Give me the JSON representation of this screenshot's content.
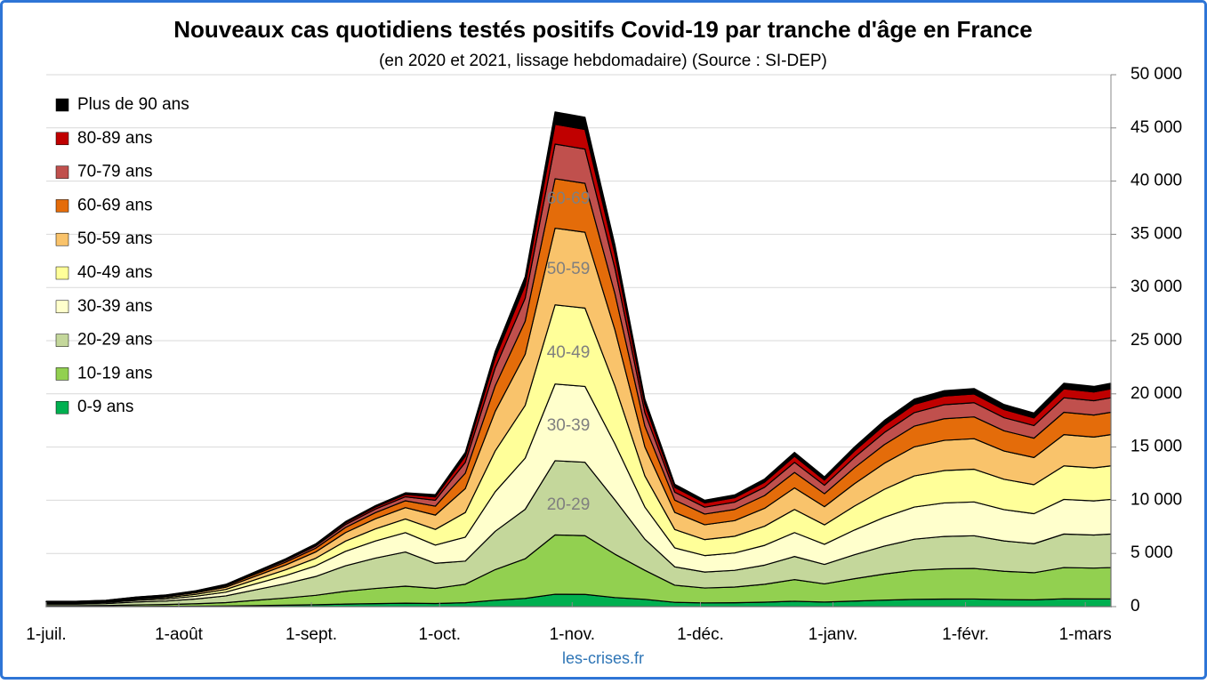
{
  "chart_data": {
    "type": "stacked-area",
    "title": "Nouveaux cas quotidiens testés positifs Covid-19 par tranche d'âge en France",
    "subtitle": "(en 2020 et 2021, lissage hebdomadaire) (Source : SI-DEP)",
    "source": "les-crises.fr",
    "annotations": [
      "60-69",
      "50-59",
      "40-49",
      "30-39",
      "20-29"
    ],
    "x": [
      0,
      7,
      14,
      21,
      28,
      35,
      42,
      49,
      56,
      63,
      70,
      77,
      84,
      91,
      98,
      105,
      112,
      119,
      126,
      133,
      140,
      147,
      154,
      161,
      168,
      175,
      182,
      189,
      196,
      203,
      210,
      217,
      224,
      231,
      238,
      245,
      249
    ],
    "xlim": [
      0,
      249
    ],
    "xticks": [
      {
        "value": 0,
        "label": "1-juil."
      },
      {
        "value": 31,
        "label": "1-août"
      },
      {
        "value": 62,
        "label": "1-sept."
      },
      {
        "value": 92,
        "label": "1-oct."
      },
      {
        "value": 123,
        "label": "1-nov."
      },
      {
        "value": 153,
        "label": "1-déc."
      },
      {
        "value": 184,
        "label": "1-janv."
      },
      {
        "value": 215,
        "label": "1-févr."
      },
      {
        "value": 243,
        "label": "1-mars"
      }
    ],
    "ylim": [
      0,
      50000
    ],
    "yticks": [
      0,
      {
        "value": 5000,
        "label": "5 000"
      },
      {
        "value": 10000,
        "label": "10 000"
      },
      {
        "value": 15000,
        "label": "15 000"
      },
      {
        "value": 20000,
        "label": "20 000"
      },
      {
        "value": 25000,
        "label": "25 000"
      },
      {
        "value": 30000,
        "label": "30 000"
      },
      {
        "value": 35000,
        "label": "35 000"
      },
      {
        "value": 40000,
        "label": "40 000"
      },
      {
        "value": 45000,
        "label": "45 000"
      },
      {
        "value": 50000,
        "label": "50 000"
      }
    ],
    "grid": true,
    "series": [
      {
        "name": "0-9 ans",
        "color": "#00b050",
        "values": [
          15,
          15,
          18,
          27,
          33,
          45,
          63,
          99,
          135,
          177,
          240,
          285,
          321,
          294,
          363,
          600,
          775,
          1163,
          1150,
          850,
          683,
          403,
          350,
          368,
          420,
          508,
          427,
          525,
          613,
          683,
          711,
          718,
          665,
          637,
          735,
          725,
          735
        ]
      },
      {
        "name": "10-19 ans",
        "color": "#92d050",
        "values": [
          75,
          75,
          90,
          135,
          165,
          225,
          315,
          495,
          675,
          885,
          1200,
          1425,
          1605,
          1418,
          1740,
          2880,
          3720,
          5580,
          5520,
          4080,
          2730,
          1610,
          1400,
          1470,
          1680,
          2030,
          1708,
          2100,
          2450,
          2730,
          2842,
          2870,
          2660,
          2548,
          2940,
          2898,
          2940
        ]
      },
      {
        "name": "20-29 ans",
        "color": "#c4d79b",
        "values": [
          150,
          150,
          180,
          270,
          330,
          450,
          630,
          990,
          1350,
          1770,
          2400,
          2850,
          3210,
          2363,
          2175,
          3600,
          4650,
          6975,
          6900,
          5100,
          2925,
          1725,
          1500,
          1575,
          1800,
          2175,
          1830,
          2250,
          2625,
          2925,
          3045,
          3075,
          2850,
          2730,
          3150,
          3105,
          3150
        ]
      },
      {
        "name": "30-39 ans",
        "color": "#ffffcc",
        "values": [
          85,
          85,
          102,
          153,
          187,
          255,
          357,
          561,
          765,
          1003,
          1360,
          1615,
          1819,
          1712,
          2248,
          3720,
          4805,
          7208,
          7130,
          5270,
          3023,
          1783,
          1550,
          1628,
          1860,
          2248,
          1891,
          2325,
          2713,
          3023,
          3147,
          3178,
          2945,
          2821,
          3255,
          3209,
          3255
        ]
      },
      {
        "name": "40-49 ans",
        "color": "#ffff99",
        "values": [
          60,
          60,
          72,
          108,
          132,
          180,
          252,
          396,
          540,
          708,
          960,
          1140,
          1284,
          1470,
          2320,
          3840,
          4960,
          7440,
          7360,
          5440,
          2925,
          1725,
          1500,
          1575,
          1800,
          2175,
          1830,
          2250,
          2625,
          2925,
          3045,
          3075,
          2850,
          2730,
          3150,
          3105,
          3150
        ]
      },
      {
        "name": "50-59 ans",
        "color": "#f9c36b",
        "values": [
          50,
          50,
          60,
          90,
          110,
          150,
          210,
          330,
          450,
          590,
          800,
          950,
          1070,
          1344,
          2248,
          3720,
          4805,
          7208,
          7130,
          5270,
          2730,
          1610,
          1400,
          1470,
          1680,
          2030,
          1708,
          2100,
          2450,
          2730,
          2842,
          2870,
          2660,
          2548,
          2940,
          2898,
          2940
        ]
      },
      {
        "name": "60-69 ans",
        "color": "#e46c0a",
        "values": [
          30,
          30,
          36,
          54,
          66,
          90,
          126,
          198,
          270,
          354,
          480,
          570,
          642,
          840,
          1450,
          2400,
          3100,
          4650,
          4600,
          3400,
          1950,
          1150,
          1000,
          1050,
          1200,
          1450,
          1220,
          1500,
          1750,
          1950,
          2030,
          2050,
          1900,
          1820,
          2100,
          2070,
          2100
        ]
      },
      {
        "name": "70-79 ans",
        "color": "#c0504d",
        "values": [
          18,
          18,
          21,
          32,
          39,
          53,
          74,
          116,
          158,
          207,
          280,
          333,
          375,
          557,
          1015,
          1680,
          2170,
          3255,
          3220,
          2380,
          1268,
          748,
          650,
          683,
          780,
          943,
          793,
          975,
          1138,
          1268,
          1320,
          1333,
          1235,
          1183,
          1365,
          1346,
          1365
        ]
      },
      {
        "name": "80-89 ans",
        "color": "#c00000",
        "values": [
          10,
          10,
          12,
          18,
          22,
          30,
          42,
          66,
          90,
          118,
          160,
          190,
          214,
          315,
          580,
          960,
          1240,
          1860,
          1840,
          1360,
          780,
          460,
          400,
          420,
          480,
          580,
          488,
          600,
          700,
          780,
          812,
          820,
          760,
          728,
          840,
          828,
          840
        ]
      },
      {
        "name": "Plus de 90 ans",
        "color": "#000000",
        "values": [
          7,
          7,
          9,
          13,
          16,
          22,
          31,
          49,
          67,
          88,
          120,
          143,
          161,
          210,
          363,
          600,
          775,
          1163,
          1150,
          850,
          488,
          288,
          250,
          263,
          300,
          363,
          305,
          375,
          438,
          488,
          508,
          513,
          475,
          455,
          525,
          518,
          525
        ]
      }
    ]
  }
}
